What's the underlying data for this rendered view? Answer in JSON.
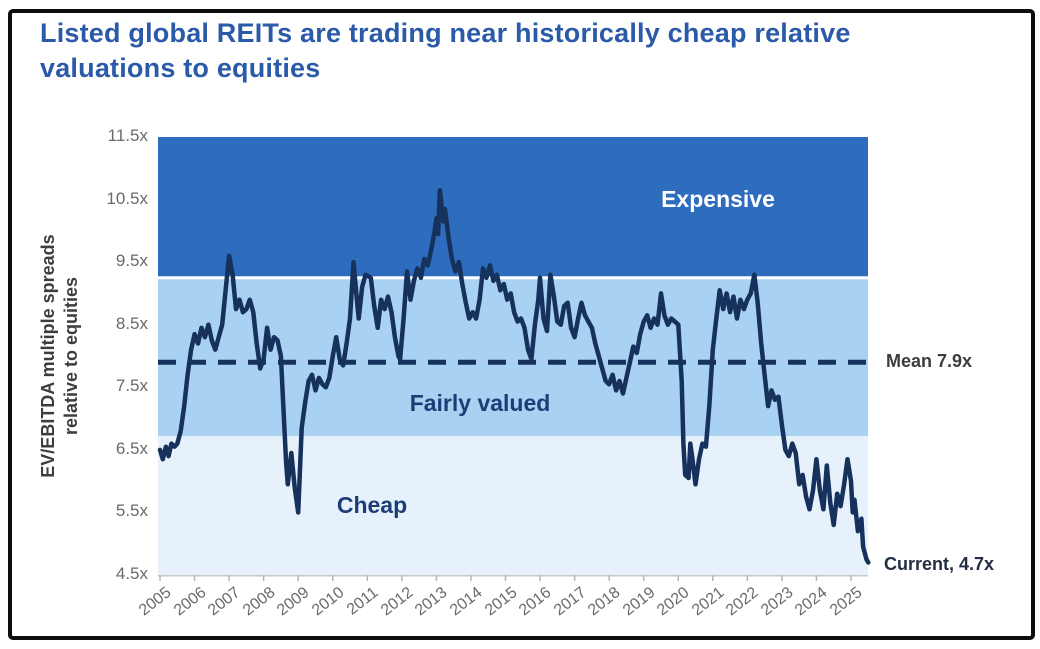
{
  "title": "Listed global REITs are trading near historically cheap relative valuations to equities",
  "chart_data": {
    "type": "line",
    "ylabel": "EV/EBITDA multiple spreads relative to equities",
    "ylabel_line1": "EV/EBITDA multiple spreads",
    "ylabel_line2": "relative to equities",
    "ylim": [
      4.5,
      11.5
    ],
    "xlim": [
      2005,
      2025.6
    ],
    "grid": false,
    "legend": "none",
    "y_ticks": [
      {
        "label": "11.5x",
        "value": 11.5
      },
      {
        "label": "10.5x",
        "value": 10.5
      },
      {
        "label": "9.5x",
        "value": 9.5
      },
      {
        "label": "8.5x",
        "value": 8.5
      },
      {
        "label": "7.5x",
        "value": 7.5
      },
      {
        "label": "6.5x",
        "value": 6.5
      },
      {
        "label": "5.5x",
        "value": 5.5
      },
      {
        "label": "4.5x",
        "value": 4.5
      }
    ],
    "x_ticks": [
      2005,
      2006,
      2007,
      2008,
      2009,
      2010,
      2011,
      2012,
      2013,
      2014,
      2015,
      2016,
      2017,
      2018,
      2019,
      2020,
      2021,
      2022,
      2023,
      2024,
      2025
    ],
    "bands": [
      {
        "label": "Expensive",
        "from": 9.25,
        "to": 11.5,
        "color": "#2e6cbd"
      },
      {
        "label": "Fairly valued",
        "from": 6.72,
        "to": 9.25,
        "color": "#a9d1f1"
      },
      {
        "label": "Cheap",
        "from": 4.5,
        "to": 6.72,
        "color": "#e7f1fb"
      }
    ],
    "mean_line": {
      "label": "Mean 7.9x",
      "value": 7.9
    },
    "current_label": "Current, 4.7x",
    "current_value": 4.7,
    "line_color": "#16325c",
    "separator_color": "#ffffff",
    "axis_color": "#c9c9c9",
    "series": [
      {
        "points": [
          [
            2005.0,
            6.5
          ],
          [
            2005.08,
            6.35
          ],
          [
            2005.17,
            6.55
          ],
          [
            2005.25,
            6.4
          ],
          [
            2005.33,
            6.6
          ],
          [
            2005.42,
            6.55
          ],
          [
            2005.5,
            6.6
          ],
          [
            2005.6,
            6.8
          ],
          [
            2005.7,
            7.2
          ],
          [
            2005.8,
            7.7
          ],
          [
            2005.9,
            8.1
          ],
          [
            2006.0,
            8.35
          ],
          [
            2006.1,
            8.2
          ],
          [
            2006.2,
            8.45
          ],
          [
            2006.3,
            8.3
          ],
          [
            2006.4,
            8.5
          ],
          [
            2006.5,
            8.25
          ],
          [
            2006.6,
            8.1
          ],
          [
            2006.7,
            8.3
          ],
          [
            2006.8,
            8.5
          ],
          [
            2006.9,
            9.05
          ],
          [
            2007.0,
            9.6
          ],
          [
            2007.1,
            9.3
          ],
          [
            2007.2,
            8.75
          ],
          [
            2007.3,
            8.9
          ],
          [
            2007.4,
            8.7
          ],
          [
            2007.5,
            8.75
          ],
          [
            2007.6,
            8.9
          ],
          [
            2007.7,
            8.7
          ],
          [
            2007.8,
            8.2
          ],
          [
            2007.9,
            7.8
          ],
          [
            2008.0,
            7.95
          ],
          [
            2008.1,
            8.45
          ],
          [
            2008.2,
            8.1
          ],
          [
            2008.3,
            8.3
          ],
          [
            2008.4,
            8.25
          ],
          [
            2008.5,
            8.0
          ],
          [
            2008.55,
            7.4
          ],
          [
            2008.65,
            6.3
          ],
          [
            2008.7,
            5.95
          ],
          [
            2008.8,
            6.45
          ],
          [
            2008.9,
            5.9
          ],
          [
            2009.0,
            5.5
          ],
          [
            2009.1,
            6.85
          ],
          [
            2009.2,
            7.25
          ],
          [
            2009.3,
            7.6
          ],
          [
            2009.4,
            7.7
          ],
          [
            2009.5,
            7.45
          ],
          [
            2009.6,
            7.65
          ],
          [
            2009.7,
            7.55
          ],
          [
            2009.8,
            7.5
          ],
          [
            2009.9,
            7.65
          ],
          [
            2010.0,
            8.0
          ],
          [
            2010.1,
            8.3
          ],
          [
            2010.2,
            7.95
          ],
          [
            2010.3,
            7.85
          ],
          [
            2010.4,
            8.2
          ],
          [
            2010.5,
            8.6
          ],
          [
            2010.6,
            9.5
          ],
          [
            2010.7,
            8.9
          ],
          [
            2010.75,
            8.6
          ],
          [
            2010.85,
            9.1
          ],
          [
            2010.95,
            9.3
          ],
          [
            2011.1,
            9.25
          ],
          [
            2011.2,
            8.8
          ],
          [
            2011.3,
            8.45
          ],
          [
            2011.4,
            8.9
          ],
          [
            2011.5,
            8.75
          ],
          [
            2011.6,
            8.95
          ],
          [
            2011.7,
            8.7
          ],
          [
            2011.8,
            8.3
          ],
          [
            2011.9,
            8.0
          ],
          [
            2011.95,
            7.95
          ],
          [
            2012.05,
            8.6
          ],
          [
            2012.15,
            9.35
          ],
          [
            2012.25,
            8.9
          ],
          [
            2012.35,
            9.2
          ],
          [
            2012.45,
            9.4
          ],
          [
            2012.55,
            9.25
          ],
          [
            2012.65,
            9.55
          ],
          [
            2012.75,
            9.45
          ],
          [
            2012.85,
            9.7
          ],
          [
            2012.95,
            10.0
          ],
          [
            2013.0,
            10.2
          ],
          [
            2013.05,
            9.95
          ],
          [
            2013.1,
            10.65
          ],
          [
            2013.2,
            10.15
          ],
          [
            2013.25,
            10.35
          ],
          [
            2013.35,
            9.9
          ],
          [
            2013.45,
            9.55
          ],
          [
            2013.55,
            9.35
          ],
          [
            2013.65,
            9.5
          ],
          [
            2013.75,
            9.15
          ],
          [
            2013.85,
            8.85
          ],
          [
            2013.95,
            8.6
          ],
          [
            2014.05,
            8.7
          ],
          [
            2014.15,
            8.6
          ],
          [
            2014.25,
            8.9
          ],
          [
            2014.35,
            9.4
          ],
          [
            2014.45,
            9.25
          ],
          [
            2014.55,
            9.45
          ],
          [
            2014.65,
            9.2
          ],
          [
            2014.75,
            9.3
          ],
          [
            2014.85,
            9.05
          ],
          [
            2014.95,
            9.15
          ],
          [
            2015.05,
            8.9
          ],
          [
            2015.15,
            9.0
          ],
          [
            2015.25,
            8.7
          ],
          [
            2015.35,
            8.55
          ],
          [
            2015.45,
            8.6
          ],
          [
            2015.55,
            8.45
          ],
          [
            2015.65,
            8.1
          ],
          [
            2015.75,
            7.95
          ],
          [
            2015.85,
            8.5
          ],
          [
            2015.95,
            8.9
          ],
          [
            2016.0,
            9.25
          ],
          [
            2016.1,
            8.6
          ],
          [
            2016.2,
            8.4
          ],
          [
            2016.3,
            9.3
          ],
          [
            2016.4,
            8.95
          ],
          [
            2016.5,
            8.55
          ],
          [
            2016.6,
            8.5
          ],
          [
            2016.7,
            8.8
          ],
          [
            2016.8,
            8.85
          ],
          [
            2016.9,
            8.45
          ],
          [
            2017.0,
            8.3
          ],
          [
            2017.1,
            8.6
          ],
          [
            2017.2,
            8.85
          ],
          [
            2017.3,
            8.65
          ],
          [
            2017.4,
            8.55
          ],
          [
            2017.5,
            8.45
          ],
          [
            2017.6,
            8.2
          ],
          [
            2017.7,
            8.0
          ],
          [
            2017.8,
            7.8
          ],
          [
            2017.9,
            7.6
          ],
          [
            2018.0,
            7.55
          ],
          [
            2018.1,
            7.7
          ],
          [
            2018.2,
            7.45
          ],
          [
            2018.3,
            7.6
          ],
          [
            2018.4,
            7.4
          ],
          [
            2018.5,
            7.65
          ],
          [
            2018.6,
            7.9
          ],
          [
            2018.7,
            8.15
          ],
          [
            2018.8,
            8.05
          ],
          [
            2018.9,
            8.35
          ],
          [
            2019.0,
            8.55
          ],
          [
            2019.1,
            8.65
          ],
          [
            2019.2,
            8.45
          ],
          [
            2019.3,
            8.6
          ],
          [
            2019.4,
            8.5
          ],
          [
            2019.5,
            9.0
          ],
          [
            2019.6,
            8.65
          ],
          [
            2019.7,
            8.5
          ],
          [
            2019.8,
            8.6
          ],
          [
            2019.9,
            8.55
          ],
          [
            2020.0,
            8.5
          ],
          [
            2020.1,
            7.6
          ],
          [
            2020.15,
            6.6
          ],
          [
            2020.2,
            6.1
          ],
          [
            2020.3,
            6.05
          ],
          [
            2020.35,
            6.6
          ],
          [
            2020.4,
            6.4
          ],
          [
            2020.5,
            5.95
          ],
          [
            2020.6,
            6.35
          ],
          [
            2020.7,
            6.6
          ],
          [
            2020.8,
            6.55
          ],
          [
            2020.9,
            7.2
          ],
          [
            2021.0,
            8.1
          ],
          [
            2021.1,
            8.6
          ],
          [
            2021.2,
            9.05
          ],
          [
            2021.3,
            8.75
          ],
          [
            2021.4,
            9.0
          ],
          [
            2021.5,
            8.7
          ],
          [
            2021.6,
            8.95
          ],
          [
            2021.7,
            8.6
          ],
          [
            2021.8,
            8.9
          ],
          [
            2021.9,
            8.75
          ],
          [
            2022.0,
            8.9
          ],
          [
            2022.1,
            9.0
          ],
          [
            2022.2,
            9.3
          ],
          [
            2022.3,
            8.85
          ],
          [
            2022.4,
            8.2
          ],
          [
            2022.5,
            7.7
          ],
          [
            2022.6,
            7.2
          ],
          [
            2022.7,
            7.45
          ],
          [
            2022.8,
            7.3
          ],
          [
            2022.9,
            7.35
          ],
          [
            2023.0,
            6.9
          ],
          [
            2023.1,
            6.5
          ],
          [
            2023.2,
            6.4
          ],
          [
            2023.3,
            6.6
          ],
          [
            2023.4,
            6.45
          ],
          [
            2023.5,
            5.95
          ],
          [
            2023.6,
            6.1
          ],
          [
            2023.7,
            5.75
          ],
          [
            2023.8,
            5.55
          ],
          [
            2023.9,
            5.85
          ],
          [
            2024.0,
            6.35
          ],
          [
            2024.1,
            5.85
          ],
          [
            2024.2,
            5.55
          ],
          [
            2024.3,
            6.25
          ],
          [
            2024.4,
            5.65
          ],
          [
            2024.5,
            5.3
          ],
          [
            2024.6,
            5.8
          ],
          [
            2024.7,
            5.6
          ],
          [
            2024.8,
            5.95
          ],
          [
            2024.9,
            6.35
          ],
          [
            2025.0,
            6.0
          ],
          [
            2025.05,
            5.5
          ],
          [
            2025.1,
            5.7
          ],
          [
            2025.2,
            5.2
          ],
          [
            2025.3,
            5.4
          ],
          [
            2025.35,
            4.95
          ],
          [
            2025.4,
            4.85
          ],
          [
            2025.45,
            4.75
          ],
          [
            2025.5,
            4.7
          ]
        ]
      }
    ]
  }
}
